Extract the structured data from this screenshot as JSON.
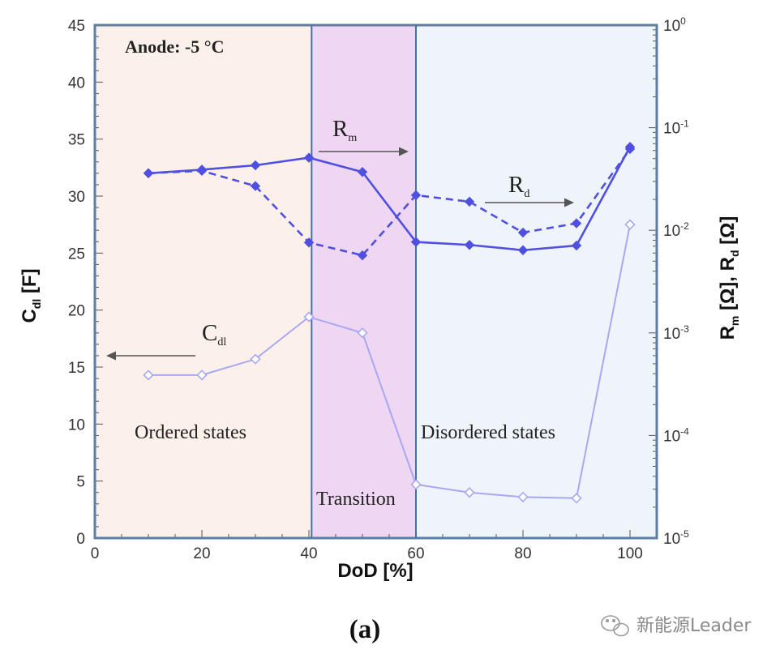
{
  "chart_data": {
    "type": "line",
    "panel_label": "(a)",
    "xlabel": "DoD [%]",
    "x_ticks": [
      "0",
      "20",
      "40",
      "60",
      "80",
      "100"
    ],
    "xlim": [
      0,
      105
    ],
    "ylabel_left": {
      "main": "C",
      "sub": "dl",
      "tail": " [F]"
    },
    "ylim_left": [
      0,
      45
    ],
    "y_ticks_left": [
      "0",
      "5",
      "10",
      "15",
      "20",
      "25",
      "30",
      "35",
      "40",
      "45"
    ],
    "ylabel_right": {
      "m": "R",
      "m_sub": "m",
      "mid": " [Ω], ",
      "d": "R",
      "d_sub": "d",
      "tail": " [Ω]"
    },
    "ylim_right_log": [
      -5,
      0
    ],
    "y_ticks_right": [
      {
        "base": "10",
        "exp": "-5"
      },
      {
        "base": "10",
        "exp": "-4"
      },
      {
        "base": "10",
        "exp": "-3"
      },
      {
        "base": "10",
        "exp": "-2"
      },
      {
        "base": "10",
        "exp": "-1"
      },
      {
        "base": "10",
        "exp": "0"
      }
    ],
    "regions": [
      {
        "name": "ordered",
        "x0": 0,
        "x1": 40.5,
        "color": "#fbf1ea"
      },
      {
        "name": "transition",
        "x0": 40.5,
        "x1": 60,
        "color": "#efd6f2"
      },
      {
        "name": "disordered",
        "x0": 60,
        "x1": 105,
        "color": "#eef4fa"
      }
    ],
    "series": [
      {
        "name": "C_dl",
        "axis": "left",
        "style": "solid",
        "marker": "open-diamond",
        "color": "#a8a8f2",
        "x": [
          10,
          20,
          30,
          40,
          50,
          60,
          70,
          80,
          90,
          100
        ],
        "values": [
          14.3,
          14.3,
          15.7,
          19.4,
          18.0,
          4.7,
          4.0,
          3.6,
          3.5,
          27.5
        ]
      },
      {
        "name": "R_m",
        "axis": "right",
        "style": "solid",
        "marker": "filled-diamond",
        "color": "#5050e0",
        "x": [
          10,
          20,
          30,
          40,
          50,
          60,
          70,
          80,
          90,
          100
        ],
        "values": [
          0.036,
          0.039,
          0.043,
          0.051,
          0.037,
          0.0077,
          0.0072,
          0.0064,
          0.0071,
          0.065
        ]
      },
      {
        "name": "R_d",
        "axis": "right",
        "style": "dashed",
        "marker": "filled-diamond",
        "color": "#5050e0",
        "x": [
          10,
          20,
          30,
          40,
          50,
          60,
          70,
          80,
          90,
          100
        ],
        "values": [
          0.036,
          0.038,
          0.027,
          0.0076,
          0.0057,
          0.022,
          0.019,
          0.0095,
          0.0117,
          0.062
        ]
      }
    ],
    "annotations": {
      "anode": "Anode: -5 °C",
      "rm": {
        "main": "R",
        "sub": "m"
      },
      "rd": {
        "main": "R",
        "sub": "d"
      },
      "cdl": {
        "main": "C",
        "sub": "dl"
      },
      "ordered": "Ordered states",
      "transition": "Transition",
      "disordered": "Disordered states"
    }
  },
  "watermark": "新能源Leader"
}
